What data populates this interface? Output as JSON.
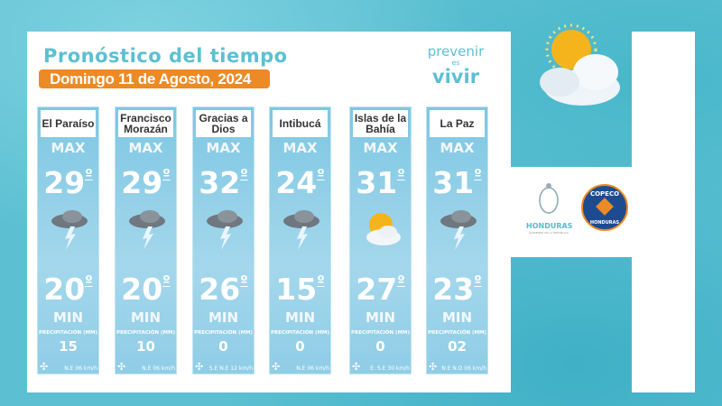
{
  "header": {
    "title": "Pronóstico del tiempo",
    "date": "Domingo 11 de Agosto, 2024"
  },
  "logo": {
    "line1": "prevenir",
    "line2": "es",
    "line3": "vivir"
  },
  "labels": {
    "max": "MAX",
    "min": "MIN",
    "precip": "PRECIPITACIÓN (MM)",
    "degree": "º"
  },
  "regions": [
    {
      "name": "El Paraíso",
      "max": "29",
      "min": "20",
      "precip": "15",
      "wind": "N.E  06 km/h",
      "icon": "thunderstorm-icon"
    },
    {
      "name": "Francisco Morazán",
      "max": "29",
      "min": "20",
      "precip": "10",
      "wind": "N.E  06 km/h",
      "icon": "thunderstorm-icon"
    },
    {
      "name": "Gracias a Dios",
      "max": "32",
      "min": "26",
      "precip": "0",
      "wind": "S.E  N.E  12 km/h",
      "icon": "thunderstorm-icon"
    },
    {
      "name": "Intibucá",
      "max": "24",
      "min": "15",
      "precip": "0",
      "wind": "N.E  06 km/h",
      "icon": "thunderstorm-icon"
    },
    {
      "name": "Islas de la Bahía",
      "max": "31",
      "min": "27",
      "precip": "0",
      "wind": "E. S.E 30 km/h",
      "icon": "partly-sunny-icon"
    },
    {
      "name": "La Paz",
      "max": "31",
      "min": "23",
      "precip": "02",
      "wind": "N.E  N.O 06 km/h",
      "icon": "thunderstorm-icon"
    }
  ],
  "logos": {
    "honduras": "HONDURAS",
    "honduras_sub": "GOBIERNO DE LA REPÚBLICA",
    "copeco": "COPECO",
    "copeco_sub": "HONDURAS"
  },
  "colors": {
    "accent": "#5cc0d2",
    "banner": "#ec8a25",
    "column": "#8fcde6"
  }
}
